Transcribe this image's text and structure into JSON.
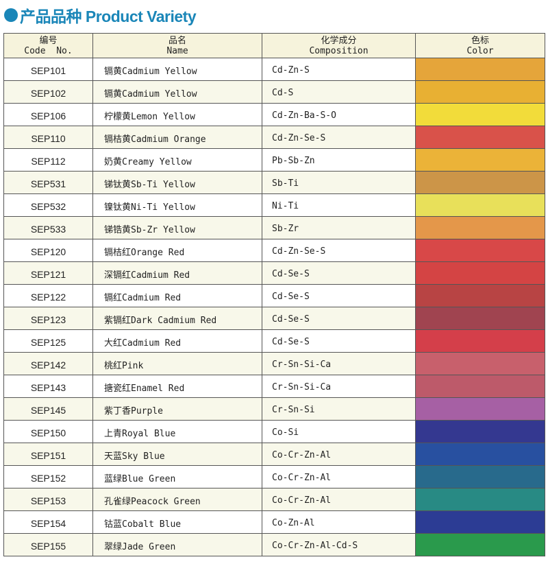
{
  "title": "产品品种 Product Variety",
  "headers": [
    {
      "cn": "编号",
      "en": "Code  No."
    },
    {
      "cn": "品名",
      "en": "Name"
    },
    {
      "cn": "化学成分",
      "en": "Composition"
    },
    {
      "cn": "色标",
      "en": "Color"
    }
  ],
  "rows": [
    {
      "code": "SEP101",
      "name": "镉黄Cadmium Yellow",
      "comp": "Cd-Zn-S",
      "color": "#e5a53a"
    },
    {
      "code": "SEP102",
      "name": "镉黄Cadmium Yellow",
      "comp": "Cd-S",
      "color": "#e8b033"
    },
    {
      "code": "SEP106",
      "name": "柠檬黄Lemon Yellow",
      "comp": "Cd-Zn-Ba-S-O",
      "color": "#f2dc3a"
    },
    {
      "code": "SEP110",
      "name": "镉桔黄Cadmium Orange",
      "comp": "Cd-Zn-Se-S",
      "color": "#d9524a"
    },
    {
      "code": "SEP112",
      "name": "奶黄Creamy Yellow",
      "comp": "Pb-Sb-Zn",
      "color": "#ebb338"
    },
    {
      "code": "SEP531",
      "name": "锑钛黄Sb-Ti Yellow",
      "comp": "Sb-Ti",
      "color": "#cc9548"
    },
    {
      "code": "SEP532",
      "name": "镍钛黄Ni-Ti Yellow",
      "comp": "Ni-Ti",
      "color": "#e8e05a"
    },
    {
      "code": "SEP533",
      "name": "锑锆黄Sb-Zr Yellow",
      "comp": "Sb-Zr",
      "color": "#e4974a"
    },
    {
      "code": "SEP120",
      "name": "镉桔红Orange Red",
      "comp": "Cd-Zn-Se-S",
      "color": "#d84848"
    },
    {
      "code": "SEP121",
      "name": "深镉红Cadmium Red",
      "comp": "Cd-Se-S",
      "color": "#d44444"
    },
    {
      "code": "SEP122",
      "name": "镉红Cadmium Red",
      "comp": "Cd-Se-S",
      "color": "#b84444"
    },
    {
      "code": "SEP123",
      "name": "紫镉红Dark Cadmium Red",
      "comp": "Cd-Se-S",
      "color": "#a04450"
    },
    {
      "code": "SEP125",
      "name": "大红Cadmium Red",
      "comp": "Cd-Se-S",
      "color": "#d43f4a"
    },
    {
      "code": "SEP142",
      "name": "桃红Pink",
      "comp": "Cr-Sn-Si-Ca",
      "color": "#c8606c"
    },
    {
      "code": "SEP143",
      "name": "搪瓷红Enamel Red",
      "comp": "Cr-Sn-Si-Ca",
      "color": "#bd5a6a"
    },
    {
      "code": "SEP145",
      "name": "紫丁香Purple",
      "comp": "Cr-Sn-Si",
      "color": "#a660a4"
    },
    {
      "code": "SEP150",
      "name": "上青Royal Blue",
      "comp": "Co-Si",
      "color": "#343890"
    },
    {
      "code": "SEP151",
      "name": "天蓝Sky Blue",
      "comp": "Co-Cr-Zn-Al",
      "color": "#2850a0"
    },
    {
      "code": "SEP152",
      "name": "蓝绿Blue Green",
      "comp": "Co-Cr-Zn-Al",
      "color": "#286a8c"
    },
    {
      "code": "SEP153",
      "name": "孔雀绿Peacock Green",
      "comp": "Co-Cr-Zn-Al",
      "color": "#288a84"
    },
    {
      "code": "SEP154",
      "name": "钴蓝Cobalt Blue",
      "comp": "Co-Zn-Al",
      "color": "#2c3c94"
    },
    {
      "code": "SEP155",
      "name": "翠绿Jade Green",
      "comp": "Co-Cr-Zn-Al-Cd-S",
      "color": "#2a9a4c"
    }
  ]
}
